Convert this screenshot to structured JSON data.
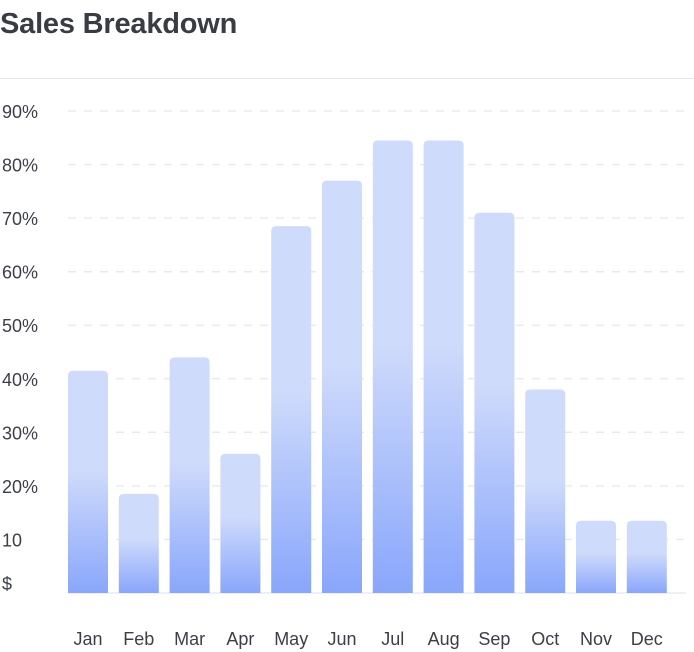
{
  "title": "Sales Breakdown",
  "colors": {
    "bar_top": "#cfdbfb",
    "bar_bottom": "#89a6fb",
    "grid": "#e5e7ec",
    "baseline": "#e9ebef",
    "divider": "#e3e6f0",
    "text": "#3c3f48"
  },
  "chart_data": {
    "type": "bar",
    "categories": [
      "Jan",
      "Feb",
      "Mar",
      "Apr",
      "May",
      "Jun",
      "Jul",
      "Aug",
      "Sep",
      "Oct",
      "Nov",
      "Dec"
    ],
    "values": [
      41.5,
      18.5,
      44,
      26,
      68.5,
      77,
      84.5,
      84.5,
      71,
      38,
      13.5,
      13.5
    ],
    "y_tick_values": [
      0,
      10,
      20,
      30,
      40,
      50,
      60,
      70,
      80,
      90
    ],
    "y_tick_labels": [
      "$",
      "10",
      "20%",
      "30%",
      "40%",
      "50%",
      "60%",
      "70%",
      "80%",
      "90%"
    ],
    "ylim": [
      0,
      90
    ],
    "grid": true,
    "grid_style": "dashed",
    "legend": "none"
  }
}
